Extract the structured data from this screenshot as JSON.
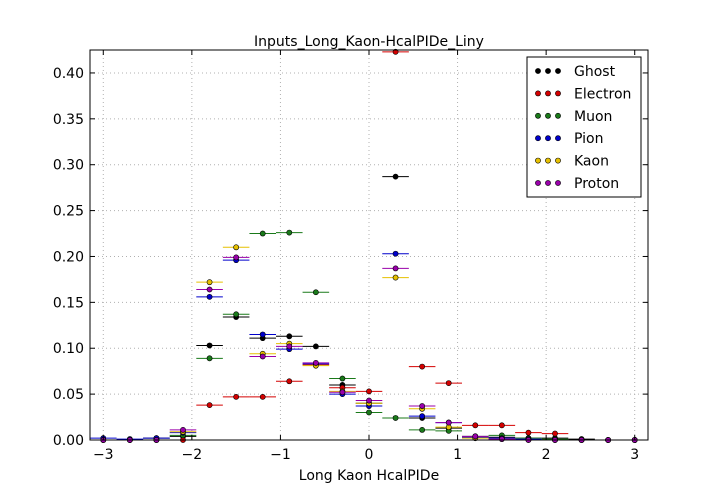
{
  "chart_data": {
    "type": "scatter",
    "title": "Inputs_Long_Kaon-HcalPIDe_Liny",
    "xlabel": "Long Kaon HcalPIDe",
    "ylabel": "",
    "xlim": [
      -3.15,
      3.15
    ],
    "ylim": [
      0,
      0.425
    ],
    "bin_half_width": 0.15,
    "xticks": [
      "−3",
      "−2",
      "−1",
      "0",
      "1",
      "2",
      "3"
    ],
    "xtick_values": [
      -3,
      -2,
      -1,
      0,
      1,
      2,
      3
    ],
    "yticks": [
      "0.00",
      "0.05",
      "0.10",
      "0.15",
      "0.20",
      "0.25",
      "0.30",
      "0.35",
      "0.40"
    ],
    "ytick_values": [
      0,
      0.05,
      0.1,
      0.15,
      0.2,
      0.25,
      0.3,
      0.35,
      0.4
    ],
    "grid": true,
    "legend_position": "top-right",
    "x": [
      -3.0,
      -2.7,
      -2.4,
      -2.1,
      -1.8,
      -1.5,
      -1.2,
      -0.9,
      -0.6,
      -0.3,
      0.0,
      0.3,
      0.6,
      0.9,
      1.2,
      1.5,
      1.8,
      2.1,
      2.4,
      2.7,
      3.0
    ],
    "series": [
      {
        "name": "Ghost",
        "color": "#000000",
        "values": [
          0.0,
          0.0,
          0.002,
          0.004,
          0.103,
          0.134,
          0.111,
          0.113,
          0.102,
          0.06,
          0.04,
          0.287,
          0.024,
          0.013,
          0.003,
          0.003,
          0.002,
          0.002,
          0.001,
          0.0,
          0.0
        ]
      },
      {
        "name": "Electron",
        "color": "#d40000",
        "values": [
          0.0,
          0.0,
          0.0,
          0.0,
          0.038,
          0.047,
          0.047,
          0.064,
          0.082,
          0.057,
          0.053,
          0.423,
          0.08,
          0.062,
          0.016,
          0.016,
          0.008,
          0.007,
          0.0,
          0.0,
          0.0
        ]
      },
      {
        "name": "Muon",
        "color": "#1a7a1a",
        "values": [
          0.0,
          0.0,
          0.0,
          0.005,
          0.089,
          0.137,
          0.225,
          0.226,
          0.161,
          0.067,
          0.03,
          0.024,
          0.011,
          0.01,
          0.004,
          0.005,
          0.002,
          0.001,
          0.0,
          0.0,
          0.0
        ]
      },
      {
        "name": "Pion",
        "color": "#0000cc",
        "values": [
          0.002,
          0.001,
          0.002,
          0.008,
          0.156,
          0.196,
          0.115,
          0.099,
          0.083,
          0.05,
          0.037,
          0.203,
          0.026,
          0.019,
          0.003,
          0.002,
          0.001,
          0.0,
          0.0,
          0.0,
          0.0
        ]
      },
      {
        "name": "Kaon",
        "color": "#e6c000",
        "values": [
          0.0,
          0.0,
          0.0,
          0.009,
          0.172,
          0.21,
          0.094,
          0.105,
          0.081,
          0.053,
          0.04,
          0.177,
          0.034,
          0.014,
          0.002,
          0.001,
          0.0,
          0.0,
          0.0,
          0.0,
          0.0
        ]
      },
      {
        "name": "Proton",
        "color": "#9900aa",
        "values": [
          0.0,
          0.0,
          0.0,
          0.011,
          0.164,
          0.199,
          0.091,
          0.102,
          0.084,
          0.052,
          0.043,
          0.187,
          0.037,
          0.019,
          0.004,
          0.001,
          0.0,
          0.0,
          0.0,
          0.0,
          0.0
        ]
      }
    ]
  }
}
